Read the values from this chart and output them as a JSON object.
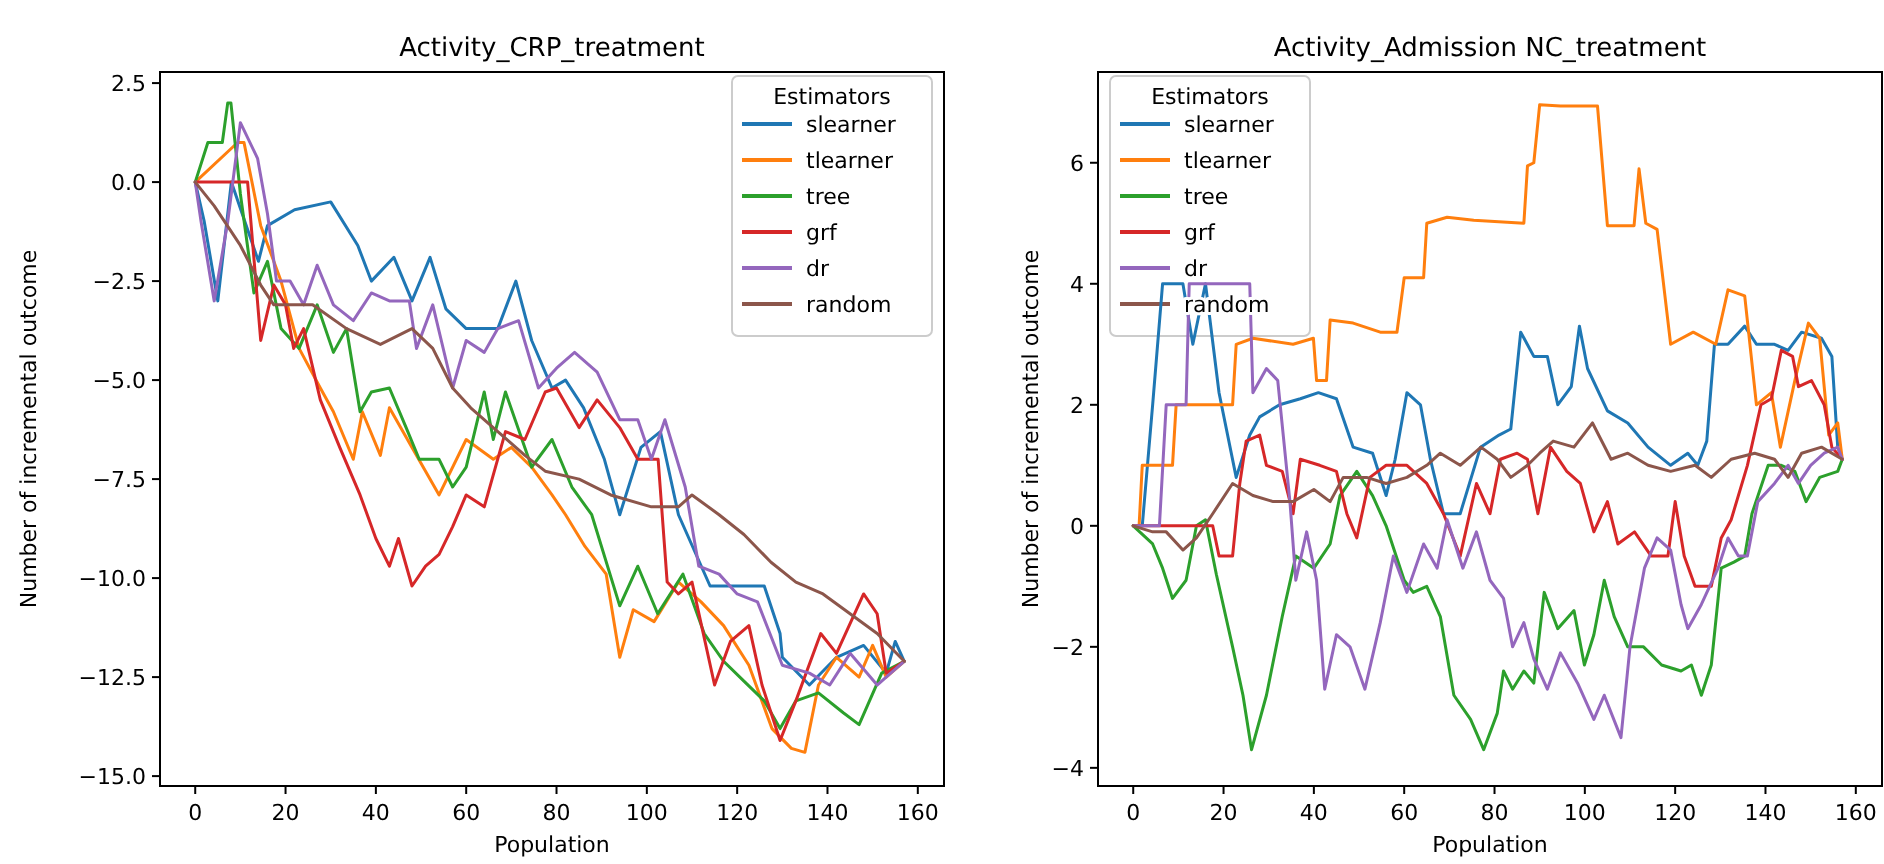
{
  "chart_data": [
    {
      "type": "line",
      "title": "Activity_CRP_treatment",
      "xlabel": "Population",
      "ylabel": "Number of incremental outcome",
      "legend_title": "Estimators",
      "legend": "top right",
      "xlim": [
        -7.8,
        165.8
      ],
      "ylim": [
        -15.25,
        2.78
      ],
      "xticks": [
        0,
        20,
        40,
        60,
        80,
        100,
        120,
        140,
        160
      ],
      "yticks": [
        {
          "value": 2.5,
          "label": "2.5"
        },
        {
          "value": 0,
          "label": "0.0"
        },
        {
          "value": -2.5,
          "label": "−2.5"
        },
        {
          "value": -5,
          "label": "−5.0"
        },
        {
          "value": -7.5,
          "label": "−7.5"
        },
        {
          "value": -10,
          "label": "−10.0"
        },
        {
          "value": -12.5,
          "label": "−12.5"
        },
        {
          "value": -15,
          "label": "−15.0"
        }
      ],
      "series": [
        {
          "name": "slearner",
          "color": "#1f77b4",
          "x": [
            0,
            2,
            5,
            8,
            14,
            16,
            22,
            30,
            36,
            39,
            44,
            48,
            52,
            55.5,
            60,
            67,
            71,
            74.5,
            79,
            82,
            86,
            90.6,
            94,
            98.7,
            103,
            107,
            114,
            120,
            126,
            129.5,
            130,
            136,
            142,
            148,
            153,
            155,
            157
          ],
          "values": [
            0,
            -1,
            -3,
            0,
            -2,
            -1.1,
            -0.7,
            -0.5,
            -1.6,
            -2.5,
            -1.9,
            -3,
            -1.9,
            -3.2,
            -3.7,
            -3.7,
            -2.5,
            -4,
            -5.2,
            -5,
            -5.7,
            -7,
            -8.4,
            -6.7,
            -6.3,
            -8.4,
            -10.2,
            -10.2,
            -10.2,
            -11.4,
            -12,
            -12.7,
            -12,
            -11.7,
            -12.4,
            -11.6,
            -12.1
          ]
        },
        {
          "name": "tlearner",
          "color": "#ff7f0e",
          "x": [
            0,
            9.4,
            10.8,
            14.5,
            19,
            23,
            27.7,
            30.6,
            35,
            37,
            41,
            43,
            48,
            54,
            60,
            66,
            70,
            74.5,
            79,
            82,
            86.3,
            91,
            94,
            97,
            101.6,
            107,
            112,
            117,
            122.6,
            127.7,
            132,
            135,
            138,
            142,
            147,
            150,
            153,
            157
          ],
          "values": [
            0,
            1,
            1,
            -1.1,
            -2.5,
            -4.2,
            -5.2,
            -5.8,
            -7,
            -5.8,
            -6.9,
            -5.7,
            -6.7,
            -7.9,
            -6.5,
            -7,
            -6.7,
            -7.2,
            -7.9,
            -8.4,
            -9.2,
            -9.9,
            -12,
            -10.8,
            -11.1,
            -10.1,
            -10.6,
            -11.2,
            -12.2,
            -13.8,
            -14.3,
            -14.4,
            -12.7,
            -12,
            -12.5,
            -11.7,
            -12.5,
            -12.1
          ]
        },
        {
          "name": "tree",
          "color": "#2ca02c",
          "x": [
            0,
            2.8,
            6,
            7.2,
            7.9,
            10,
            13,
            16,
            19,
            23,
            27,
            30.6,
            33.5,
            36.5,
            39,
            43,
            46.7,
            49.6,
            54,
            57,
            60,
            64,
            66,
            68.7,
            74.5,
            79,
            83.4,
            87.8,
            94,
            98,
            102.4,
            108,
            112.7,
            117,
            121.5,
            126,
            129.5,
            133,
            138,
            143.5,
            147,
            152,
            157
          ],
          "values": [
            0,
            1,
            1,
            2,
            2,
            -0.3,
            -2.8,
            -2,
            -3.7,
            -4.2,
            -3.1,
            -4.3,
            -3.7,
            -5.8,
            -5.3,
            -5.2,
            -6.2,
            -7,
            -7,
            -7.7,
            -7.2,
            -5.3,
            -6.5,
            -5.3,
            -7.2,
            -6.5,
            -7.7,
            -8.4,
            -10.7,
            -9.7,
            -10.9,
            -9.9,
            -11.4,
            -12.1,
            -12.6,
            -13.1,
            -13.8,
            -13.1,
            -12.9,
            -13.4,
            -13.7,
            -12.4,
            -12.1
          ]
        },
        {
          "name": "grf",
          "color": "#d62728",
          "x": [
            0,
            11.6,
            14.5,
            17.4,
            20,
            21.8,
            24,
            27.7,
            32,
            36.5,
            40,
            43,
            45,
            48,
            51,
            54,
            57,
            60,
            64,
            68.7,
            73,
            77.5,
            80,
            85,
            89,
            94,
            98,
            102.5,
            104.5,
            107,
            110,
            115,
            118.5,
            122.6,
            125.5,
            129.5,
            133,
            138.5,
            142,
            148,
            151,
            153,
            157
          ],
          "values": [
            0,
            0,
            -4,
            -2.6,
            -3.1,
            -4.2,
            -3.7,
            -5.5,
            -6.7,
            -7.9,
            -9,
            -9.7,
            -9,
            -10.2,
            -9.7,
            -9.4,
            -8.7,
            -7.9,
            -8.2,
            -6.3,
            -6.5,
            -5.3,
            -5.2,
            -6.2,
            -5.5,
            -6.2,
            -7,
            -7,
            -10.1,
            -10.4,
            -10.1,
            -12.7,
            -11.6,
            -11.2,
            -12.7,
            -14.1,
            -13.1,
            -11.4,
            -11.9,
            -10.4,
            -10.9,
            -12.4,
            -12.1
          ]
        },
        {
          "name": "dr",
          "color": "#9467bd",
          "x": [
            0,
            1.3,
            4.2,
            7.2,
            10,
            13.8,
            16,
            18,
            21,
            24,
            27,
            30.6,
            35,
            39,
            43,
            47.4,
            49,
            52.6,
            57,
            60,
            64,
            67,
            71.6,
            76,
            80,
            84,
            89,
            94,
            98,
            101,
            104,
            108.5,
            111.5,
            116,
            120,
            124.5,
            130,
            136,
            140.5,
            145,
            151,
            154,
            157
          ],
          "values": [
            0,
            -1,
            -3,
            -1,
            1.5,
            0.6,
            -0.8,
            -2.5,
            -2.5,
            -3.1,
            -2.1,
            -3.1,
            -3.5,
            -2.8,
            -3,
            -3,
            -4.2,
            -3.1,
            -5.2,
            -4,
            -4.3,
            -3.7,
            -3.5,
            -5.2,
            -4.7,
            -4.3,
            -4.8,
            -6,
            -6,
            -7,
            -6,
            -7.7,
            -9.7,
            -9.9,
            -10.4,
            -10.6,
            -12.2,
            -12.4,
            -12.7,
            -11.9,
            -12.7,
            -12.4,
            -12.1
          ]
        },
        {
          "name": "random",
          "color": "#8c564b",
          "x": [
            0,
            4.2,
            10,
            14.5,
            17.4,
            26,
            33.5,
            41,
            48,
            52.6,
            57,
            61,
            67,
            73,
            77.5,
            85,
            92,
            101,
            107,
            110,
            116,
            121.5,
            127.5,
            133,
            139,
            145,
            151,
            157
          ],
          "values": [
            0,
            -0.6,
            -1.6,
            -2.6,
            -3.1,
            -3.1,
            -3.7,
            -4.1,
            -3.7,
            -4.2,
            -5.2,
            -5.7,
            -6.3,
            -6.9,
            -7.3,
            -7.5,
            -7.9,
            -8.2,
            -8.2,
            -7.9,
            -8.4,
            -8.9,
            -9.6,
            -10.1,
            -10.4,
            -10.9,
            -11.4,
            -12.1
          ]
        }
      ]
    },
    {
      "type": "line",
      "title": "Activity_Admission NC_treatment",
      "xlabel": "Population",
      "ylabel": "Number of incremental outcome",
      "legend_title": "Estimators",
      "legend": "top left",
      "xlim": [
        -7.8,
        165.8
      ],
      "ylim": [
        -4.3,
        7.5
      ],
      "xticks": [
        0,
        20,
        40,
        60,
        80,
        100,
        120,
        140,
        160
      ],
      "yticks": [
        {
          "value": -4,
          "label": "−4"
        },
        {
          "value": -2,
          "label": "−2"
        },
        0,
        2,
        4,
        6
      ],
      "series": [
        {
          "name": "slearner",
          "color": "#1f77b4",
          "x": [
            0,
            2,
            4.3,
            6.5,
            11,
            13.2,
            16,
            19,
            22.8,
            25.8,
            28,
            32.4,
            37,
            41,
            45,
            48.7,
            53,
            56,
            58,
            60.6,
            63.6,
            65.8,
            68.7,
            72.4,
            76.9,
            81,
            83.6,
            85.8,
            88.7,
            91.7,
            94,
            97,
            98.8,
            100.6,
            105,
            109.5,
            114,
            119,
            122.8,
            125,
            127,
            128.7,
            131.7,
            135.4,
            138,
            142,
            145,
            148,
            152.4,
            154.7,
            156,
            157
          ],
          "values": [
            0,
            0,
            2,
            4,
            4,
            3,
            4,
            2.2,
            0.8,
            1.5,
            1.8,
            2,
            2.1,
            2.2,
            2.1,
            1.3,
            1.2,
            0.5,
            1.1,
            2.2,
            2,
            1.1,
            0.2,
            0.2,
            1.3,
            1.5,
            1.6,
            3.2,
            2.8,
            2.8,
            2,
            2.3,
            3.3,
            2.6,
            1.9,
            1.7,
            1.3,
            1,
            1.2,
            1,
            1.4,
            3,
            3,
            3.3,
            3,
            3,
            2.9,
            3.2,
            3.1,
            2.8,
            1.3,
            1.1
          ]
        },
        {
          "name": "tlearner",
          "color": "#ff7f0e",
          "x": [
            0,
            1.3,
            2,
            8.7,
            9.5,
            22,
            22.8,
            26.5,
            35.4,
            39.9,
            40.6,
            42.8,
            43.6,
            48.7,
            54.7,
            58.4,
            60,
            64.3,
            65,
            69.5,
            75.4,
            86.5,
            87.3,
            88.7,
            90,
            94.6,
            102.8,
            105,
            110.9,
            112,
            113.5,
            116,
            119,
            124,
            129,
            131.7,
            135.4,
            138,
            141.3,
            143.3,
            146.5,
            149.5,
            152,
            154,
            156,
            157
          ],
          "values": [
            0,
            0,
            1,
            1,
            2,
            2,
            3,
            3.1,
            3,
            3.1,
            2.4,
            2.4,
            3.4,
            3.35,
            3.2,
            3.2,
            4.1,
            4.1,
            5,
            5.1,
            5.05,
            5,
            5.95,
            6,
            6.96,
            6.94,
            6.94,
            4.96,
            4.96,
            5.9,
            5,
            4.9,
            3,
            3.2,
            3,
            3.9,
            3.8,
            2,
            2.2,
            1.3,
            2.4,
            3.35,
            3.1,
            1.5,
            1.7,
            1.1
          ]
        },
        {
          "name": "tree",
          "color": "#2ca02c",
          "x": [
            0,
            4.3,
            6.5,
            8.7,
            11.7,
            14,
            16,
            18.4,
            22,
            24.3,
            26.2,
            29.5,
            33,
            36,
            40,
            43.6,
            45.8,
            49.5,
            53,
            56,
            60,
            62,
            65,
            68,
            71,
            74.7,
            77.6,
            80.6,
            82,
            84,
            86.5,
            88.7,
            91,
            94,
            97.6,
            99.9,
            102,
            104.3,
            106.5,
            109.5,
            113,
            117,
            121.3,
            123.6,
            125.8,
            128,
            130.2,
            133,
            135.4,
            137,
            140.6,
            143.5,
            146.5,
            149,
            152,
            156,
            157
          ],
          "values": [
            0,
            -0.3,
            -0.7,
            -1.2,
            -0.9,
            0,
            0.1,
            -0.8,
            -2,
            -2.8,
            -3.7,
            -2.8,
            -1.5,
            -0.5,
            -0.7,
            -0.3,
            0.5,
            0.9,
            0.5,
            0,
            -0.9,
            -1.1,
            -1,
            -1.5,
            -2.8,
            -3.2,
            -3.7,
            -3.1,
            -2.4,
            -2.7,
            -2.4,
            -2.6,
            -1.1,
            -1.7,
            -1.4,
            -2.3,
            -1.8,
            -0.9,
            -1.5,
            -2,
            -2,
            -2.3,
            -2.4,
            -2.3,
            -2.8,
            -2.3,
            -0.7,
            -0.6,
            -0.5,
            0.2,
            1,
            1,
            0.9,
            0.4,
            0.8,
            0.9,
            1.1
          ]
        },
        {
          "name": "grf",
          "color": "#d62728",
          "x": [
            0,
            17.6,
            19,
            22,
            23.6,
            25,
            28,
            29.5,
            33,
            35.4,
            37,
            41.3,
            45,
            47.3,
            49.5,
            52.4,
            56,
            60.6,
            65,
            68.7,
            72.4,
            76,
            79,
            81.3,
            85,
            87.3,
            89.6,
            92.4,
            96,
            99,
            102,
            105,
            107.3,
            111,
            114.7,
            118.4,
            120,
            122,
            124.4,
            128,
            130.2,
            132.4,
            136,
            139,
            141.3,
            143.5,
            146,
            147.3,
            150.2,
            153,
            154.7,
            157
          ],
          "values": [
            0,
            0,
            -0.5,
            -0.5,
            0.7,
            1.4,
            1.5,
            1,
            0.9,
            0.2,
            1.1,
            1,
            0.9,
            0.2,
            -0.2,
            0.8,
            1,
            1,
            0.7,
            0.2,
            -0.5,
            0.7,
            0.2,
            1.1,
            1.2,
            1.1,
            0.2,
            1.3,
            0.9,
            0.7,
            -0.1,
            0.4,
            -0.3,
            -0.1,
            -0.5,
            -0.5,
            0.4,
            -0.5,
            -1,
            -1,
            -0.2,
            0.1,
            1,
            2,
            2.1,
            2.9,
            2.8,
            2.3,
            2.4,
            2,
            1.3,
            1.1
          ]
        },
        {
          "name": "dr",
          "color": "#9467bd",
          "x": [
            0,
            5.8,
            7.3,
            11.7,
            12.4,
            25.8,
            26.5,
            29.5,
            32,
            34.7,
            36,
            38.4,
            40.6,
            42.4,
            45,
            48,
            51.3,
            54.7,
            57.6,
            60.6,
            64.3,
            67.3,
            69.5,
            73,
            76,
            79,
            82,
            84,
            86.5,
            88.7,
            91.7,
            94.6,
            98.4,
            102,
            104.3,
            108,
            110,
            113.2,
            116,
            119,
            121.3,
            122.8,
            125.8,
            129.5,
            131.7,
            134,
            136,
            138.3,
            142,
            145,
            147.3,
            150,
            153,
            156,
            157
          ],
          "values": [
            0,
            0,
            2,
            2,
            4,
            4,
            2.2,
            2.6,
            2.4,
            0.4,
            -0.9,
            -0.1,
            -0.9,
            -2.7,
            -1.8,
            -2,
            -2.7,
            -1.6,
            -0.5,
            -1.1,
            -0.3,
            -0.7,
            0.1,
            -0.7,
            -0.1,
            -0.9,
            -1.2,
            -2,
            -1.6,
            -2.2,
            -2.7,
            -2.1,
            -2.6,
            -3.2,
            -2.8,
            -3.5,
            -2,
            -0.7,
            -0.2,
            -0.4,
            -1.3,
            -1.7,
            -1.3,
            -0.7,
            -0.2,
            -0.5,
            -0.5,
            0.4,
            0.7,
            1,
            0.7,
            1,
            1.2,
            1.3,
            1.1
          ]
        },
        {
          "name": "random",
          "color": "#8c564b",
          "x": [
            0,
            4.3,
            7.3,
            11,
            14,
            17.6,
            22,
            26.5,
            31,
            35.4,
            40,
            43.6,
            46.5,
            51.7,
            56,
            60.6,
            65,
            68,
            72.4,
            77,
            80.6,
            83.6,
            87.3,
            90,
            93,
            97.6,
            101.7,
            105.8,
            109.5,
            114,
            119,
            124.4,
            128,
            132.4,
            137.6,
            142,
            145,
            148,
            152.4,
            157
          ],
          "values": [
            0,
            -0.1,
            -0.1,
            -0.4,
            -0.2,
            0.2,
            0.7,
            0.5,
            0.4,
            0.4,
            0.6,
            0.4,
            0.8,
            0.8,
            0.7,
            0.8,
            1,
            1.2,
            1,
            1.3,
            1.1,
            0.8,
            1,
            1.2,
            1.4,
            1.3,
            1.7,
            1.1,
            1.2,
            1,
            0.9,
            1,
            0.8,
            1.1,
            1.2,
            1.1,
            0.8,
            1.2,
            1.3,
            1.1
          ]
        }
      ]
    }
  ]
}
